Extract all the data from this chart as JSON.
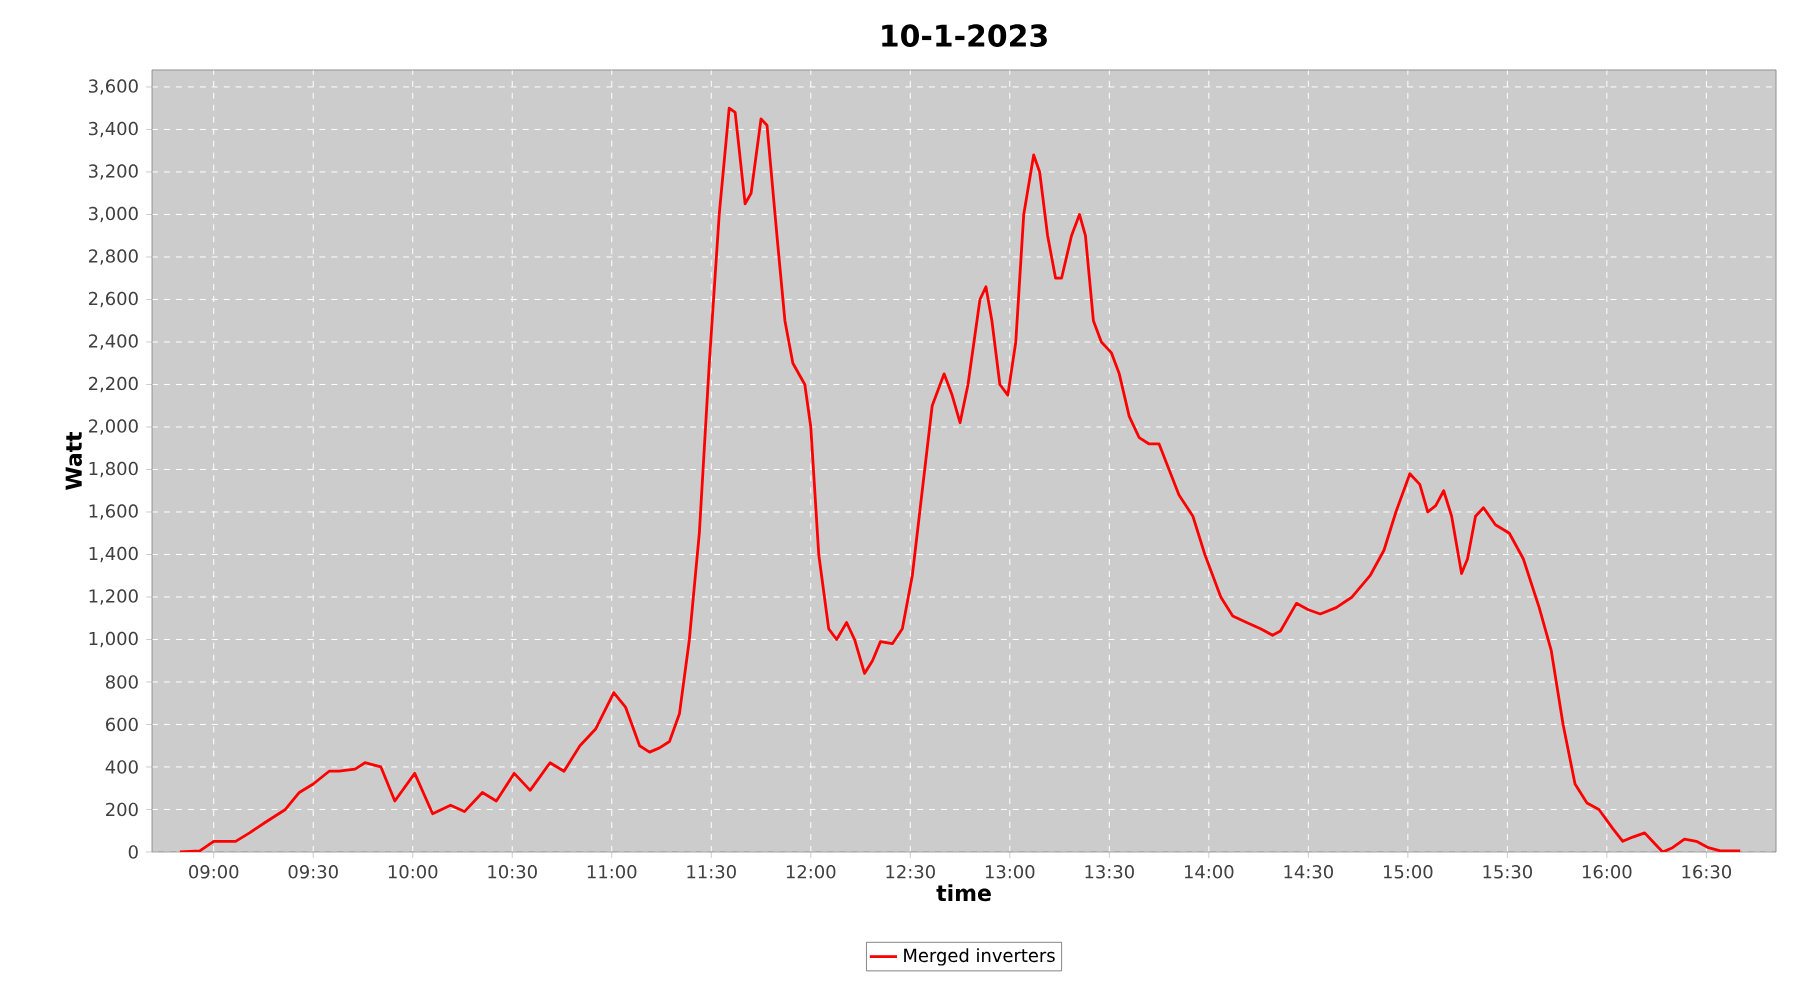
{
  "chart_data": {
    "type": "line",
    "title": "10-1-2023",
    "xlabel": "time",
    "ylabel": "Watt",
    "x": [
      8.83,
      8.93,
      9.0,
      9.11,
      9.18,
      9.26,
      9.36,
      9.43,
      9.5,
      9.58,
      9.63,
      9.71,
      9.76,
      9.84,
      9.91,
      10.01,
      10.1,
      10.19,
      10.26,
      10.35,
      10.42,
      10.51,
      10.59,
      10.69,
      10.76,
      10.84,
      10.92,
      11.01,
      11.07,
      11.14,
      11.19,
      11.24,
      11.29,
      11.34,
      11.39,
      11.44,
      11.49,
      11.54,
      11.59,
      11.62,
      11.67,
      11.7,
      11.75,
      11.78,
      11.83,
      11.87,
      11.91,
      11.97,
      12.0,
      12.04,
      12.09,
      12.13,
      12.18,
      12.22,
      12.27,
      12.31,
      12.35,
      12.41,
      12.46,
      12.51,
      12.56,
      12.61,
      12.67,
      12.71,
      12.75,
      12.79,
      12.85,
      12.88,
      12.91,
      12.95,
      12.99,
      13.03,
      13.07,
      13.12,
      13.15,
      13.19,
      13.23,
      13.26,
      13.31,
      13.35,
      13.38,
      13.42,
      13.46,
      13.51,
      13.55,
      13.6,
      13.65,
      13.7,
      13.75,
      13.8,
      13.85,
      13.92,
      13.98,
      14.06,
      14.12,
      14.19,
      14.26,
      14.32,
      14.36,
      14.44,
      14.5,
      14.56,
      14.64,
      14.72,
      14.81,
      14.88,
      14.94,
      15.01,
      15.06,
      15.1,
      15.14,
      15.18,
      15.22,
      15.27,
      15.3,
      15.34,
      15.38,
      15.44,
      15.51,
      15.58,
      15.66,
      15.72,
      15.78,
      15.84,
      15.9,
      15.96,
      16.03,
      16.08,
      16.13,
      16.19,
      16.24,
      16.28,
      16.33,
      16.39,
      16.45,
      16.51,
      16.57,
      16.67
    ],
    "series": [
      {
        "name": "Merged inverters",
        "color": "#ff0000",
        "values": [
          0,
          5,
          50,
          50,
          90,
          140,
          200,
          280,
          320,
          380,
          380,
          390,
          420,
          400,
          240,
          370,
          180,
          220,
          190,
          280,
          240,
          370,
          290,
          420,
          380,
          500,
          580,
          750,
          680,
          500,
          470,
          490,
          520,
          650,
          1000,
          1500,
          2300,
          3000,
          3500,
          3480,
          3050,
          3100,
          3450,
          3420,
          2900,
          2500,
          2300,
          2200,
          2000,
          1400,
          1050,
          1000,
          1080,
          1000,
          840,
          900,
          990,
          980,
          1050,
          1300,
          1700,
          2100,
          2250,
          2150,
          2020,
          2200,
          2600,
          2660,
          2500,
          2200,
          2150,
          2400,
          3000,
          3280,
          3200,
          2900,
          2700,
          2700,
          2900,
          3000,
          2900,
          2500,
          2400,
          2350,
          2250,
          2050,
          1950,
          1920,
          1920,
          1800,
          1680,
          1580,
          1400,
          1200,
          1110,
          1080,
          1050,
          1020,
          1040,
          1170,
          1140,
          1120,
          1150,
          1200,
          1300,
          1420,
          1600,
          1780,
          1730,
          1600,
          1630,
          1700,
          1580,
          1310,
          1380,
          1580,
          1620,
          1540,
          1500,
          1380,
          1150,
          950,
          600,
          320,
          230,
          200,
          110,
          50,
          70,
          90,
          40,
          0,
          20,
          60,
          50,
          20,
          5,
          5
        ]
      }
    ],
    "xlim": [
      8.69,
      16.85
    ],
    "ylim": [
      0,
      3680
    ],
    "xticks": [
      {
        "value": 9,
        "label": "09:00"
      },
      {
        "value": 9.5,
        "label": "09:30"
      },
      {
        "value": 10,
        "label": "10:00"
      },
      {
        "value": 10.5,
        "label": "10:30"
      },
      {
        "value": 11,
        "label": "11:00"
      },
      {
        "value": 11.5,
        "label": "11:30"
      },
      {
        "value": 12,
        "label": "12:00"
      },
      {
        "value": 12.5,
        "label": "12:30"
      },
      {
        "value": 13,
        "label": "13:00"
      },
      {
        "value": 13.5,
        "label": "13:30"
      },
      {
        "value": 14,
        "label": "14:00"
      },
      {
        "value": 14.5,
        "label": "14:30"
      },
      {
        "value": 15,
        "label": "15:00"
      },
      {
        "value": 15.5,
        "label": "15:30"
      },
      {
        "value": 16,
        "label": "16:00"
      },
      {
        "value": 16.5,
        "label": "16:30"
      }
    ],
    "yticks": [
      0,
      200,
      400,
      600,
      800,
      {
        "value": 1000,
        "label": "1,000"
      },
      {
        "value": 1200,
        "label": "1,200"
      },
      {
        "value": 1400,
        "label": "1,400"
      },
      {
        "value": 1600,
        "label": "1,600"
      },
      {
        "value": 1800,
        "label": "1,800"
      },
      {
        "value": 2000,
        "label": "2,000"
      },
      {
        "value": 2200,
        "label": "2,200"
      },
      {
        "value": 2400,
        "label": "2,400"
      },
      {
        "value": 2600,
        "label": "2,600"
      },
      {
        "value": 2800,
        "label": "2,800"
      },
      {
        "value": 3000,
        "label": "3,000"
      },
      {
        "value": 3200,
        "label": "3,200"
      },
      {
        "value": 3400,
        "label": "3,400"
      },
      {
        "value": 3600,
        "label": "3,600"
      }
    ],
    "grid": true,
    "legend": "bottom",
    "marker": "none",
    "line_style": "solid"
  }
}
